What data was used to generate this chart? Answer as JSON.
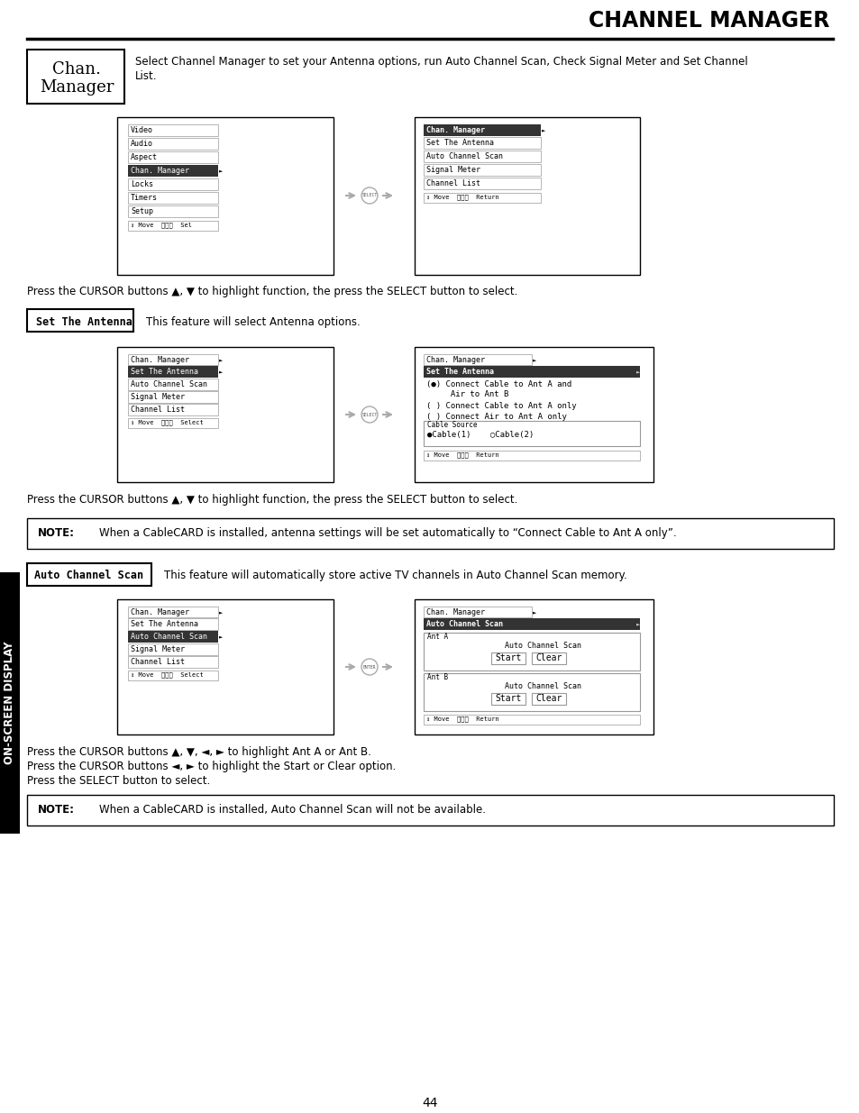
{
  "title": "CHANNEL MANAGER",
  "bg_color": "#ffffff",
  "page_number": "44",
  "chan_manager_desc1": "Select Channel Manager to set your Antenna options, run Auto Channel Scan, Check Signal Meter and Set Channel",
  "chan_manager_desc2": "List.",
  "menu1_items": [
    "Video",
    "Audio",
    "Aspect",
    "Chan. Manager",
    "Locks",
    "Timers",
    "Setup"
  ],
  "menu1_highlighted": "Chan. Manager",
  "menu1_footer": "↕ Move  ⓈⓃⓁ  Sel",
  "menu2_title": "Chan. Manager",
  "menu2_items": [
    "Set The Antenna",
    "Auto Channel Scan",
    "Signal Meter",
    "Channel List"
  ],
  "menu2_footer": "↕ Move  ⓈⓃⓁ  Return",
  "press_cursor1": "Press the CURSOR buttons ▲, ▼ to highlight function, the press the SELECT button to select.",
  "set_antenna_label": "Set The Antenna",
  "set_antenna_desc": "This feature will select Antenna options.",
  "menu3_title": "Chan. Manager",
  "menu3_items": [
    "Set The Antenna",
    "Auto Channel Scan",
    "Signal Meter",
    "Channel List"
  ],
  "menu3_highlighted": "Set The Antenna",
  "menu3_footer": "↕ Move  ⓈⓃⓁ  Select",
  "menu4_title": "Chan. Manager",
  "menu4_highlighted": "Set The Antenna",
  "menu4_opt1": "(●) Connect Cable to Ant A and",
  "menu4_opt1b": "     Air to Ant B",
  "menu4_opt2": "( ) Connect Cable to Ant A only",
  "menu4_opt3": "( ) Connect Air to Ant A only",
  "menu4_cable_source": "Cable Source",
  "menu4_cable_options": "●Cable(1)    ○Cable(2)",
  "menu4_footer": "↕ Move  ⓈⓃⓁ  Return",
  "press_cursor2": "Press the CURSOR buttons ▲, ▼ to highlight function, the press the SELECT button to select.",
  "note1_label": "NOTE:",
  "note1_text": "When a CableCARD is installed, antenna settings will be set automatically to “Connect Cable to Ant A only”.",
  "auto_channel_label": "Auto Channel Scan",
  "auto_channel_desc": "This feature will automatically store active TV channels in Auto Channel Scan memory.",
  "menu5_title": "Chan. Manager",
  "menu5_items": [
    "Set The Antenna",
    "Auto Channel Scan",
    "Signal Meter",
    "Channel List"
  ],
  "menu5_highlighted": "Auto Channel Scan",
  "menu5_footer": "↕ Move  ⓈⓃⓁ  Select",
  "menu6_title": "Chan. Manager",
  "menu6_highlighted": "Auto Channel Scan",
  "menu6_ant_a": "Ant A",
  "menu6_ant_b": "Ant B",
  "menu6_scan_label": "Auto Channel Scan",
  "menu6_start": "Start",
  "menu6_clear": "Clear",
  "menu6_footer": "↕ Move  ⓈⓃⓁ  Return",
  "press_cursor3a": "Press the CURSOR buttons ▲, ▼, ◄, ► to highlight Ant A or Ant B.",
  "press_cursor3b": "Press the CURSOR buttons ◄, ► to highlight the Start or Clear option.",
  "press_cursor3c": "Press the SELECT button to select.",
  "note2_label": "NOTE:",
  "note2_text": "When a CableCARD is installed, Auto Channel Scan will not be available.",
  "sidebar_text": "ON-SCREEN DISPLAY"
}
